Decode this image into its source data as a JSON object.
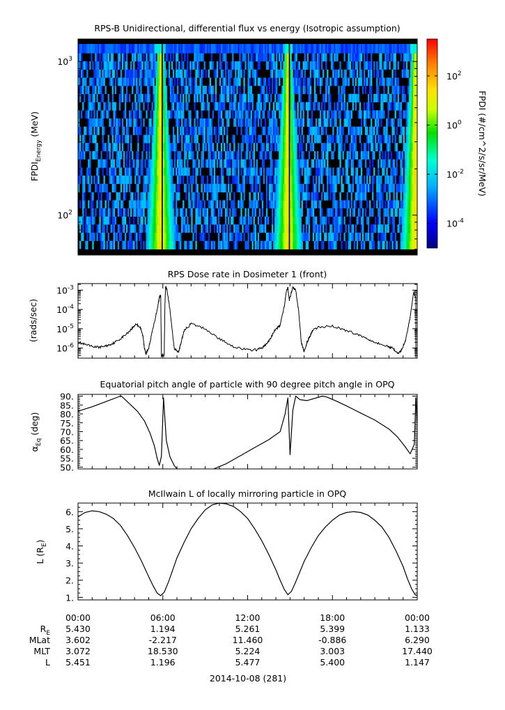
{
  "chart_data": [
    {
      "type": "heatmap",
      "title": "RPS-B  Unidirectional, differential flux vs energy (Isotropic assumption)",
      "ylabel_main": "FPDI",
      "ylabel_sub": "Energy",
      "ylabel_unit": " (MeV)",
      "yscale": "log",
      "ylim": [
        55,
        1400
      ],
      "yticks": [
        {
          "value": 100,
          "base": "10",
          "exp": "2"
        },
        {
          "value": 1000,
          "base": "10",
          "exp": "3"
        }
      ],
      "xlim_hours": [
        0,
        24
      ],
      "colorbar": {
        "label": "FPDI (#/cm^2/s/sr/MeV)",
        "scale": "log",
        "range_exp": [
          -5,
          3.5
        ],
        "ticks": [
          {
            "base": "10",
            "exp": "-4"
          },
          {
            "base": "10",
            "exp": "-2"
          },
          {
            "base": "10",
            "exp": "0"
          },
          {
            "base": "10",
            "exp": "2"
          }
        ]
      },
      "energy_bins_mev": [
        60,
        68,
        77,
        87,
        98,
        111,
        125,
        141,
        160,
        181,
        204,
        231,
        261,
        295,
        333,
        377,
        426,
        481,
        544,
        615,
        695,
        785,
        887,
        1003,
        1133,
        1300
      ],
      "peak_flux_times_hours": [
        5.85,
        14.85,
        23.85
      ],
      "peak_flux_log10": 1.5
    },
    {
      "type": "line",
      "title": "RPS  Dose rate in Dosimeter 1 (front)",
      "ylabel": "(rads/sec)",
      "yscale": "log",
      "ylim": [
        3e-07,
        0.0022
      ],
      "yticks": [
        {
          "value": 1e-06,
          "base": "10",
          "exp": "-6"
        },
        {
          "value": 1e-05,
          "base": "10",
          "exp": "-5"
        },
        {
          "value": 0.0001,
          "base": "10",
          "exp": "-4"
        },
        {
          "value": 0.001,
          "base": "10",
          "exp": "-3"
        }
      ],
      "xlim_hours": [
        0,
        24
      ],
      "series": [
        {
          "x": [
            0,
            0.5,
            1,
            1.5,
            2,
            2.5,
            3,
            3.5,
            3.8,
            4.1,
            4.4,
            4.6,
            4.7,
            4.8,
            5.0,
            5.3,
            5.6,
            5.75,
            5.85,
            5.9,
            6.1,
            6.15,
            6.2,
            6.3,
            6.5,
            6.8,
            7.1,
            7.3,
            7.5,
            8,
            9,
            10,
            11,
            12,
            12.6,
            13.0,
            13.3,
            13.6,
            13.9,
            14.3,
            14.6,
            14.75,
            14.85,
            14.95,
            15.2,
            15.4,
            15.6,
            15.8,
            16.0,
            16.2,
            16.4,
            16.6,
            17,
            18,
            19,
            19.8,
            20.5,
            21.2,
            21.9,
            22.3,
            22.6,
            22.9,
            23.2,
            23.5,
            23.75,
            23.9
          ],
          "values": [
            2e-06,
            1.5e-06,
            1.2e-06,
            1.1e-06,
            1.3e-06,
            1.8e-06,
            3e-06,
            6e-06,
            1e-05,
            1.8e-05,
            1.2e-05,
            4e-06,
            1e-06,
            5e-07,
            1e-06,
            1e-05,
            0.0001,
            0.0004,
            0.0006,
            4e-07,
            4e-07,
            0.0002,
            0.0015,
            0.001,
            0.0001,
            1e-06,
            6e-07,
            2e-06,
            8e-06,
            1.8e-05,
            1e-05,
            3e-06,
            1.2e-06,
            8e-07,
            8e-07,
            1e-06,
            1.5e-06,
            3e-06,
            8e-06,
            1.5e-05,
            0.00016,
            0.001,
            0.0014,
            0.0003,
            0.0015,
            0.001,
            0.0001,
            2e-06,
            6e-07,
            2e-06,
            4e-06,
            8e-06,
            1.2e-05,
            1.4e-05,
            8e-06,
            5e-06,
            3e-06,
            1.8e-06,
            1.2e-06,
            1e-06,
            5e-07,
            8e-07,
            3e-06,
            4e-05,
            0.0008,
            0.0004
          ]
        }
      ]
    },
    {
      "type": "line",
      "title": "Equatorial pitch angle of particle with 90 degree pitch angle in OPQ",
      "ylabel_main": "α",
      "ylabel_sub": "Eq",
      "ylabel_unit": " (deg)",
      "ylim": [
        49,
        91
      ],
      "yticks": [
        {
          "value": 50,
          "label": "50."
        },
        {
          "value": 55,
          "label": "55."
        },
        {
          "value": 60,
          "label": "60."
        },
        {
          "value": 65,
          "label": "65."
        },
        {
          "value": 70,
          "label": "70."
        },
        {
          "value": 75,
          "label": "75."
        },
        {
          "value": 80,
          "label": "80."
        },
        {
          "value": 85,
          "label": "85."
        },
        {
          "value": 90,
          "label": "90."
        }
      ],
      "xlim_hours": [
        0,
        24
      ],
      "segments": [
        {
          "x": [
            0,
            1,
            2,
            3,
            3.1,
            3.6,
            4.2,
            4.7,
            5.1,
            5.4,
            5.6,
            5.75,
            5.9,
            6.05,
            6.25,
            6.5,
            6.8,
            7.0
          ],
          "values": [
            81.5,
            84,
            87,
            90,
            89.8,
            86,
            81.5,
            76,
            69,
            62,
            55,
            51,
            56,
            89,
            65,
            56,
            51,
            49
          ]
        },
        {
          "x": [
            9.6,
            10.5,
            11.5,
            12.5,
            13.5,
            14.3,
            14.65,
            14.85,
            15.0,
            15.2,
            15.4,
            15.7,
            16.2,
            17.3,
            17.6,
            18.2,
            19,
            20,
            21,
            22,
            22.6,
            23.1,
            23.5,
            23.8,
            23.9,
            24
          ],
          "values": [
            49,
            52,
            56.5,
            61,
            65.5,
            70,
            80,
            89,
            57,
            82,
            90,
            88,
            87.5,
            90,
            89.5,
            87.5,
            84.5,
            80.5,
            76.5,
            71.5,
            67,
            62,
            57.5,
            63,
            89,
            75
          ]
        }
      ]
    },
    {
      "type": "line",
      "title": "McIlwain L of locally mirroring particle in OPQ",
      "ylabel_main": "L (R",
      "ylabel_sub": "E",
      "ylabel_unit": ")",
      "ylim": [
        0.85,
        6.5
      ],
      "yticks": [
        {
          "value": 1,
          "label": "1."
        },
        {
          "value": 2,
          "label": "2."
        },
        {
          "value": 3,
          "label": "3."
        },
        {
          "value": 4,
          "label": "4."
        },
        {
          "value": 5,
          "label": "5."
        },
        {
          "value": 6,
          "label": "6."
        }
      ],
      "xlim_hours": [
        0,
        24
      ],
      "series": [
        {
          "x": [
            0,
            0.5,
            1,
            1.5,
            2,
            2.5,
            3,
            3.5,
            4,
            4.5,
            5,
            5.3,
            5.6,
            5.85,
            6.1,
            6.4,
            6.7,
            7,
            7.5,
            8,
            8.5,
            9,
            9.5,
            10,
            10.5,
            11,
            11.5,
            12,
            12.5,
            13,
            13.5,
            14,
            14.3,
            14.6,
            14.85,
            15.1,
            15.4,
            15.7,
            16,
            16.5,
            17,
            17.5,
            18,
            18.5,
            19,
            19.5,
            20,
            20.5,
            21,
            21.5,
            22,
            22.5,
            23,
            23.3,
            23.6,
            23.85,
            24
          ],
          "values": [
            5.7,
            5.95,
            6.05,
            6.0,
            5.85,
            5.6,
            5.2,
            4.6,
            3.9,
            3.1,
            2.2,
            1.7,
            1.25,
            1.1,
            1.3,
            1.9,
            2.6,
            3.3,
            4.2,
            5.0,
            5.6,
            6.1,
            6.4,
            6.5,
            6.45,
            6.3,
            6.0,
            5.6,
            5.0,
            4.3,
            3.5,
            2.6,
            2.0,
            1.45,
            1.15,
            1.35,
            1.9,
            2.5,
            3.1,
            3.9,
            4.6,
            5.1,
            5.5,
            5.8,
            5.95,
            6.0,
            5.95,
            5.8,
            5.5,
            5.1,
            4.5,
            3.7,
            2.8,
            2.1,
            1.5,
            1.15,
            1.1
          ]
        }
      ]
    }
  ],
  "xaxis": {
    "ticks": [
      {
        "value": 0,
        "label": "00:00"
      },
      {
        "value": 6,
        "label": "06:00"
      },
      {
        "value": 12,
        "label": "12:00"
      },
      {
        "value": 18,
        "label": "18:00"
      },
      {
        "value": 24,
        "label": "00:00"
      }
    ],
    "date_label": "2014-10-08 (281)"
  },
  "ephemeris": [
    {
      "label": "R",
      "label_sub": "E",
      "values": [
        "5.430",
        "1.194",
        "5.261",
        "5.399",
        "1.133"
      ]
    },
    {
      "label": "MLat",
      "label_sub": "",
      "values": [
        "3.602",
        "-2.217",
        "11.460",
        "-0.886",
        "6.290"
      ]
    },
    {
      "label": "MLT",
      "label_sub": "",
      "values": [
        "3.072",
        "18.530",
        "5.224",
        "3.003",
        "17.440"
      ]
    },
    {
      "label": "L",
      "label_sub": "",
      "values": [
        "5.451",
        "1.196",
        "5.477",
        "5.400",
        "1.147"
      ]
    }
  ]
}
